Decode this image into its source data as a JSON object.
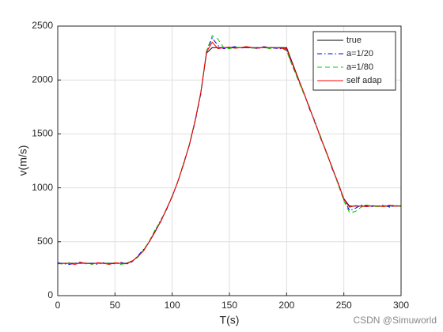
{
  "chart_data": {
    "type": "line",
    "x_label": "T(s)",
    "y_label": "v(m/s)",
    "x": [
      0,
      5,
      10,
      15,
      20,
      25,
      30,
      35,
      40,
      45,
      50,
      55,
      60,
      65,
      70,
      75,
      80,
      85,
      90,
      95,
      100,
      105,
      110,
      115,
      120,
      125,
      130,
      135,
      140,
      145,
      150,
      155,
      160,
      165,
      170,
      175,
      180,
      185,
      190,
      195,
      200,
      205,
      210,
      215,
      220,
      225,
      230,
      235,
      240,
      245,
      250,
      255,
      260,
      265,
      270,
      275,
      280,
      285,
      290,
      295,
      300
    ],
    "series": [
      {
        "name": "true",
        "color": "#000000",
        "linestyle": "solid",
        "values": [
          300,
          300,
          300,
          300,
          300,
          300,
          300,
          300,
          300,
          300,
          300,
          300,
          300,
          320,
          360,
          420,
          500,
          590,
          690,
          800,
          920,
          1060,
          1220,
          1400,
          1620,
          1880,
          2250,
          2300,
          2300,
          2300,
          2300,
          2300,
          2300,
          2300,
          2300,
          2300,
          2300,
          2300,
          2300,
          2300,
          2300,
          2160,
          2020,
          1880,
          1740,
          1600,
          1460,
          1320,
          1180,
          1040,
          900,
          830,
          830,
          830,
          830,
          830,
          830,
          830,
          830,
          830,
          830
        ]
      },
      {
        "name": "a=1/20",
        "color": "#0000ff",
        "linestyle": "dashdot",
        "values": [
          305,
          295,
          290,
          300,
          310,
          295,
          300,
          290,
          305,
          300,
          295,
          310,
          290,
          315,
          370,
          430,
          495,
          600,
          700,
          795,
          925,
          1055,
          1230,
          1395,
          1610,
          1870,
          2260,
          2390,
          2320,
          2290,
          2300,
          2310,
          2295,
          2305,
          2300,
          2290,
          2310,
          2300,
          2295,
          2290,
          2280,
          2140,
          2010,
          1880,
          1730,
          1610,
          1450,
          1330,
          1170,
          1050,
          890,
          790,
          810,
          840,
          835,
          825,
          830,
          840,
          820,
          835,
          830
        ]
      },
      {
        "name": "a=1/80",
        "color": "#00cc00",
        "linestyle": "dashed",
        "values": [
          300,
          290,
          305,
          295,
          300,
          305,
          290,
          300,
          295,
          305,
          300,
          290,
          300,
          325,
          355,
          425,
          505,
          610,
          690,
          805,
          915,
          1065,
          1215,
          1405,
          1625,
          1875,
          2270,
          2410,
          2380,
          2300,
          2290,
          2305,
          2300,
          2310,
          2295,
          2300,
          2305,
          2290,
          2300,
          2300,
          2270,
          2130,
          2000,
          1870,
          1750,
          1590,
          1470,
          1310,
          1190,
          1030,
          880,
          770,
          780,
          820,
          840,
          830,
          825,
          835,
          830,
          840,
          825
        ]
      },
      {
        "name": "self adap",
        "color": "#ff0000",
        "linestyle": "solid",
        "values": [
          295,
          300,
          300,
          290,
          305,
          300,
          295,
          305,
          300,
          290,
          305,
          300,
          295,
          320,
          365,
          415,
          500,
          595,
          685,
          805,
          920,
          1060,
          1225,
          1395,
          1620,
          1885,
          2260,
          2350,
          2290,
          2300,
          2305,
          2295,
          2300,
          2310,
          2300,
          2295,
          2305,
          2300,
          2300,
          2295,
          2290,
          2150,
          2015,
          1885,
          1740,
          1600,
          1455,
          1325,
          1180,
          1045,
          895,
          820,
          835,
          830,
          825,
          835,
          830,
          825,
          840,
          830,
          835
        ]
      }
    ],
    "xlim": [
      0,
      300
    ],
    "xticks": [
      0,
      50,
      100,
      150,
      200,
      250,
      300
    ],
    "ylim": [
      0,
      2500
    ],
    "yticks": [
      0,
      500,
      1000,
      1500,
      2000,
      2500
    ],
    "grid": true,
    "legend": "northeast",
    "watermark": "CSDN @Simuworld"
  }
}
